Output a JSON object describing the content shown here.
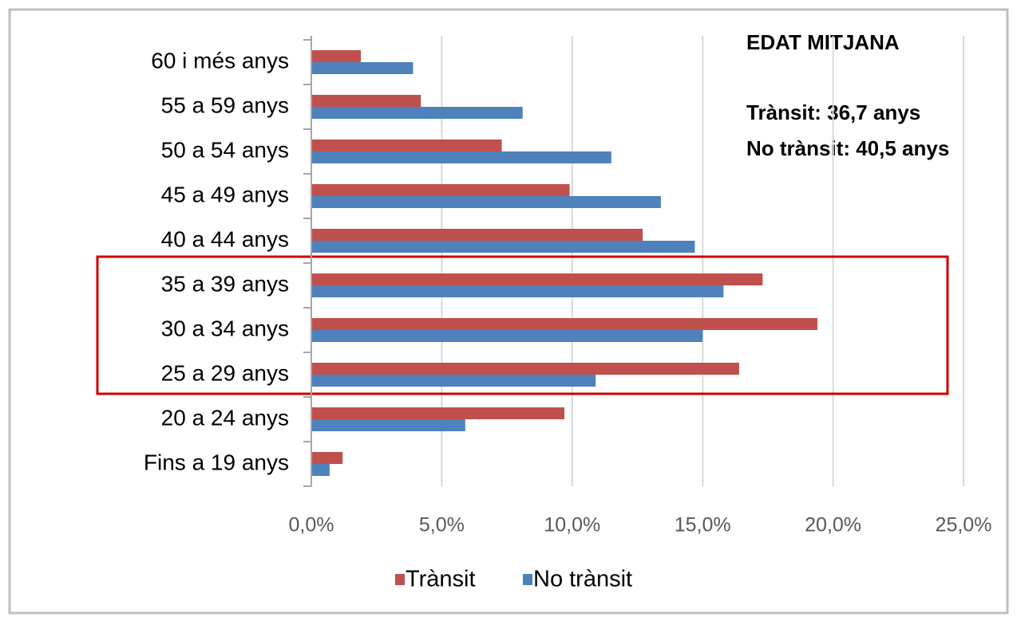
{
  "chart_data": {
    "type": "barh",
    "categories": [
      "60 i més anys",
      "55 a 59 anys",
      "50 a 54 anys",
      "45 a 49 anys",
      "40 a 44 anys",
      "35 a 39 anys",
      "30 a 34 anys",
      "25 a 29 anys",
      "20 a 24 anys",
      "Fins a 19 anys"
    ],
    "series": [
      {
        "name": "Trànsit",
        "color": "#c0504d",
        "values": [
          1.9,
          4.2,
          7.3,
          9.9,
          12.7,
          17.3,
          19.4,
          16.4,
          9.7,
          1.2
        ]
      },
      {
        "name": "No trànsit",
        "color": "#4f81bd",
        "values": [
          3.9,
          8.1,
          11.5,
          13.4,
          14.7,
          15.8,
          15.0,
          10.9,
          5.9,
          0.7
        ]
      }
    ],
    "xlim": [
      0,
      25
    ],
    "xticks": [
      {
        "value": 0,
        "label": "0,0%"
      },
      {
        "value": 5,
        "label": "5,0%"
      },
      {
        "value": 10,
        "label": "10,0%"
      },
      {
        "value": 15,
        "label": "15,0%"
      },
      {
        "value": 20,
        "label": "20,0%"
      },
      {
        "value": 25,
        "label": "25,0%"
      }
    ],
    "grid": true,
    "legend": "bottom",
    "annotations": [
      "EDAT MITJANA",
      "Trànsit: 36,7 anys",
      "No trànsit: 40,5 anys"
    ]
  }
}
